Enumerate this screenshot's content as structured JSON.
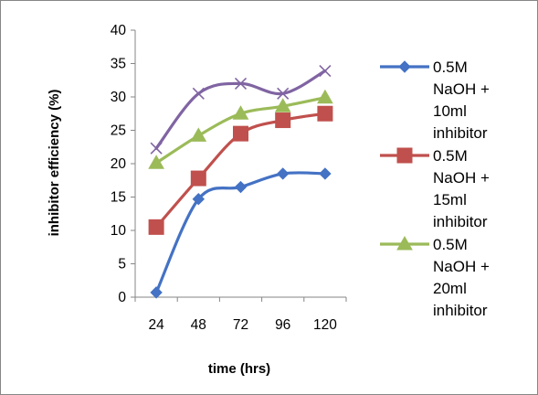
{
  "chart_data": {
    "type": "line",
    "title": "",
    "xlabel": "time (hrs)",
    "ylabel": "inhibitor efficiency (%)",
    "categories": [
      "24",
      "48",
      "72",
      "96",
      "120"
    ],
    "ylim": [
      0,
      40
    ],
    "yticks": [
      0,
      5,
      10,
      15,
      20,
      25,
      30,
      35,
      40
    ],
    "grid": false,
    "smooth": true,
    "legend_position": "right",
    "series": [
      {
        "name": "0.5M NaOH + 10ml inhibitor",
        "legend_lines": [
          "0.5M",
          "NaOH +",
          "10ml",
          "inhibitor"
        ],
        "values": [
          0.7,
          14.7,
          16.5,
          18.5,
          18.5
        ],
        "color": "#4472C4",
        "marker": "diamond"
      },
      {
        "name": "0.5M NaOH + 15ml inhibitor",
        "legend_lines": [
          "0.5M",
          "NaOH +",
          "15ml",
          "inhibitor"
        ],
        "values": [
          10.5,
          17.8,
          24.5,
          26.5,
          27.5
        ],
        "color": "#C0504D",
        "marker": "square"
      },
      {
        "name": "0.5M NaOH + 20ml inhibitor",
        "legend_lines": [
          "0.5M",
          "NaOH +",
          "20ml",
          "inhibitor"
        ],
        "values": [
          20.1,
          24.2,
          27.5,
          28.6,
          29.9
        ],
        "color": "#9BBB59",
        "marker": "triangle"
      },
      {
        "name": "",
        "legend_lines": [],
        "values": [
          22.3,
          30.5,
          32,
          30.5,
          33.9
        ],
        "color": "#8064A2",
        "marker": "x"
      }
    ]
  }
}
